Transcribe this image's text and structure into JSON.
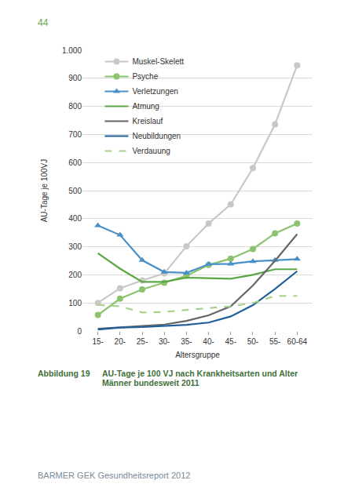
{
  "page": {
    "number": "44",
    "caption": {
      "label": "Abbildung 19",
      "text": "AU-Tage je 100 VJ nach Krankheitsarten und Alter Männer bundesweit 2011"
    },
    "footer": "BARMER GEK Gesundheitsreport 2012"
  },
  "chart_data": {
    "type": "line",
    "x_label": "Altersgruppe",
    "y_label": "AU-Tage je 100VJ",
    "categories": [
      "15-",
      "20-",
      "25-",
      "30-",
      "35-",
      "40-",
      "45-",
      "50-",
      "55-",
      "60-64"
    ],
    "ylim": [
      0,
      1000
    ],
    "yticks": [
      0,
      100,
      200,
      300,
      400,
      500,
      600,
      700,
      800,
      900,
      {
        "value": 1000,
        "label": "1.000"
      }
    ],
    "grid": true,
    "legend": "top left",
    "series": [
      {
        "name": "Muskel-Skelett",
        "color": "#c8c8c8",
        "marker": "circle",
        "line_style": "solid",
        "values": [
          100,
          152,
          180,
          205,
          302,
          383,
          451,
          580,
          736,
          946
        ]
      },
      {
        "name": "Psyche",
        "color": "#8dc26f",
        "marker": "circle",
        "line_style": "solid",
        "values": [
          57,
          115,
          148,
          172,
          197,
          235,
          258,
          292,
          348,
          383
        ]
      },
      {
        "name": "Verletzungen",
        "color": "#4a90c8",
        "marker": "triangle-up",
        "line_style": "solid",
        "values": [
          376,
          342,
          252,
          210,
          207,
          238,
          239,
          248,
          252,
          256
        ]
      },
      {
        "name": "Atmung",
        "color": "#5aa844",
        "marker": "none",
        "line_style": "solid",
        "values": [
          277,
          222,
          175,
          175,
          190,
          188,
          186,
          200,
          220,
          220
        ]
      },
      {
        "name": "Kreislauf",
        "color": "#666666",
        "marker": "none",
        "line_style": "solid",
        "values": [
          8,
          12,
          18,
          23,
          36,
          56,
          88,
          162,
          250,
          345
        ]
      },
      {
        "name": "Neubildungen",
        "color": "#1f5f9a",
        "marker": "none",
        "line_style": "solid",
        "values": [
          5,
          12,
          14,
          18,
          22,
          30,
          52,
          92,
          150,
          213
        ]
      },
      {
        "name": "Verdauung",
        "color": "#a9d18e",
        "marker": "none",
        "line_style": "dash",
        "values": [
          93,
          88,
          66,
          68,
          75,
          82,
          88,
          100,
          125,
          125
        ]
      }
    ]
  }
}
